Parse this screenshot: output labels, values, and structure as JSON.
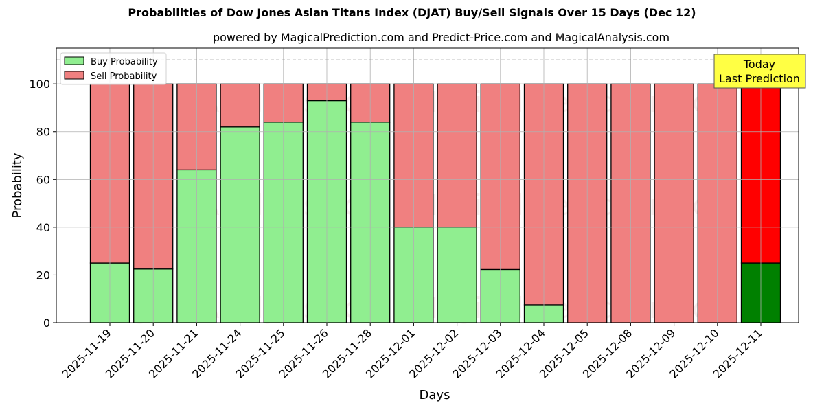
{
  "title": "Probabilities of Dow Jones Asian Titans Index (DJAT) Buy/Sell Signals Over 15 Days (Dec 12)",
  "subtitle": "powered by MagicalPrediction.com and Predict-Price.com and MagicalAnalysis.com",
  "watermarks": [
    "MagicalAnalysis.com",
    "MagicalPrediction.com"
  ],
  "annotation": {
    "line1": "Today",
    "line2": "Last Prediction"
  },
  "colors": {
    "buy": "#90ee90",
    "sell": "#f08080",
    "buy_today": "#008000",
    "sell_today": "#ff0000",
    "annotation_bg": "#ffff44"
  },
  "chart_data": {
    "type": "bar",
    "stacked": true,
    "title": "Probabilities of Dow Jones Asian Titans Index (DJAT) Buy/Sell Signals Over 15 Days (Dec 12)",
    "subtitle": "powered by MagicalPrediction.com and Predict-Price.com and MagicalAnalysis.com",
    "xlabel": "Days",
    "ylabel": "Probability",
    "ylim": [
      0,
      115
    ],
    "yticks": [
      0,
      20,
      40,
      60,
      80,
      100
    ],
    "grid": true,
    "reference_line": {
      "y": 110,
      "style": "dashed"
    },
    "legend": {
      "position": "upper left",
      "entries": [
        "Buy Probability",
        "Sell Probability"
      ]
    },
    "categories": [
      "2025-11-19",
      "2025-11-20",
      "2025-11-21",
      "2025-11-24",
      "2025-11-25",
      "2025-11-26",
      "2025-11-28",
      "2025-12-01",
      "2025-12-02",
      "2025-12-03",
      "2025-12-04",
      "2025-12-05",
      "2025-12-08",
      "2025-12-09",
      "2025-12-10",
      "2025-12-11"
    ],
    "series": [
      {
        "name": "Buy Probability",
        "values": [
          25,
          22.5,
          64,
          82,
          84,
          93,
          84,
          40,
          40,
          22.3,
          7.5,
          0,
          0,
          0,
          0,
          25
        ]
      },
      {
        "name": "Sell Probability",
        "values": [
          75,
          77.5,
          36,
          18,
          16,
          7,
          16,
          60,
          60,
          77.7,
          92.5,
          100,
          100,
          100,
          100,
          75
        ]
      }
    ],
    "highlight": {
      "index": 15,
      "label": "Today Last Prediction"
    }
  }
}
